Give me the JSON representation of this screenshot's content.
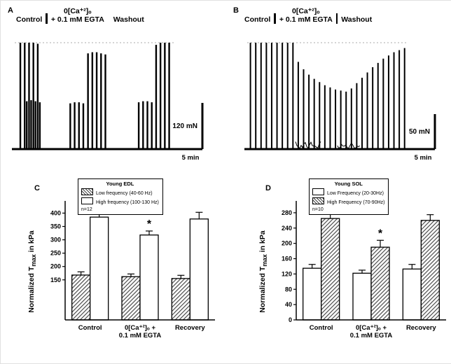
{
  "chart_data": [
    {
      "panel": "A",
      "type": "line",
      "subtype": "isometric-force-trace",
      "labels": {
        "control": "Control",
        "ca": "0[Ca⁺²]ₒ",
        "egta": "+ 0.1 mM EGTA",
        "washout": "Washout"
      },
      "scalebar": {
        "v": "120 mN",
        "h": "5 min"
      },
      "spikes": [
        [
          0.035,
          1.0
        ],
        [
          0.062,
          1.0
        ],
        [
          0.089,
          1.0
        ],
        [
          0.116,
          1.0
        ],
        [
          0.143,
          0.99
        ],
        [
          0.075,
          0.45
        ],
        [
          0.102,
          0.46
        ],
        [
          0.129,
          0.45
        ],
        [
          0.156,
          0.44
        ],
        [
          0.345,
          0.43
        ],
        [
          0.372,
          0.44
        ],
        [
          0.399,
          0.44
        ],
        [
          0.426,
          0.43
        ],
        [
          0.455,
          0.9
        ],
        [
          0.482,
          0.91
        ],
        [
          0.509,
          0.91
        ],
        [
          0.536,
          0.9
        ],
        [
          0.563,
          0.89
        ],
        [
          0.77,
          0.44
        ],
        [
          0.797,
          0.45
        ],
        [
          0.824,
          0.45
        ],
        [
          0.851,
          0.44
        ],
        [
          0.878,
          0.98
        ],
        [
          0.905,
          1.0
        ],
        [
          0.932,
          1.0
        ],
        [
          0.959,
          1.0
        ]
      ],
      "noise": []
    },
    {
      "panel": "B",
      "type": "line",
      "subtype": "isometric-force-trace",
      "labels": {
        "control": "Control",
        "ca": "0[Ca⁺²]ₒ",
        "egta": "+ 0.1 mM EGTA",
        "washout": "Washout"
      },
      "scalebar": {
        "v": "50 mN",
        "h": "5 min"
      },
      "spikes": [
        [
          0.02,
          1.0
        ],
        [
          0.053,
          1.0
        ],
        [
          0.086,
          1.0
        ],
        [
          0.119,
          1.0
        ],
        [
          0.152,
          1.0
        ],
        [
          0.185,
          1.0
        ],
        [
          0.218,
          1.0
        ],
        [
          0.251,
          1.0
        ],
        [
          0.284,
          1.0
        ],
        [
          0.317,
          0.82
        ],
        [
          0.35,
          0.75
        ],
        [
          0.383,
          0.7
        ],
        [
          0.416,
          0.66
        ],
        [
          0.449,
          0.63
        ],
        [
          0.482,
          0.6
        ],
        [
          0.515,
          0.58
        ],
        [
          0.548,
          0.56
        ],
        [
          0.581,
          0.55
        ],
        [
          0.614,
          0.54
        ],
        [
          0.647,
          0.57
        ],
        [
          0.68,
          0.62
        ],
        [
          0.713,
          0.67
        ],
        [
          0.746,
          0.72
        ],
        [
          0.779,
          0.77
        ],
        [
          0.812,
          0.81
        ],
        [
          0.845,
          0.85
        ],
        [
          0.878,
          0.88
        ],
        [
          0.911,
          0.91
        ],
        [
          0.944,
          0.93
        ],
        [
          0.977,
          0.95
        ]
      ],
      "noise": [
        {
          "x0": 0.3,
          "x1": 0.46,
          "amp": 10
        },
        {
          "x0": 0.56,
          "x1": 0.7,
          "amp": 8
        }
      ]
    },
    {
      "panel": "C",
      "type": "bar",
      "legend": {
        "title": "Young EDL",
        "items": [
          {
            "label": "Low frequency (40-60 Hz)",
            "fill": "hatch"
          },
          {
            "label": "High frequency (100-130 Hz)",
            "fill": "white"
          }
        ],
        "n": "n=12"
      },
      "ylabel": {
        "pre": "Normalized T",
        "sub": "max",
        "post": " in kPa"
      },
      "categories": [
        [
          "Control"
        ],
        [
          "0[Ca⁺²]ₒ +",
          "0.1 mM EGTA"
        ],
        [
          "Recovery"
        ]
      ],
      "series": [
        {
          "name": "Low frequency (40-60 Hz)",
          "fill": "hatch",
          "values": [
            168,
            162,
            155
          ],
          "errors": [
            12,
            10,
            12
          ]
        },
        {
          "name": "High frequency (100-130 Hz)",
          "fill": "white",
          "values": [
            385,
            318,
            378
          ],
          "errors": [
            22,
            15,
            25
          ]
        }
      ],
      "significance": [
        {
          "category": 1,
          "series": 1,
          "symbol": "*"
        }
      ],
      "ylim": [
        0,
        430
      ],
      "yticks": [
        150,
        200,
        250,
        300,
        350,
        400
      ]
    },
    {
      "panel": "D",
      "type": "bar",
      "legend": {
        "title": "Young SOL",
        "items": [
          {
            "label": "Low Frequency (20-30Hz)",
            "fill": "white"
          },
          {
            "label": "High Frequency (70-90Hz)",
            "fill": "hatch"
          }
        ],
        "n": "n=10"
      },
      "ylabel": {
        "pre": "Normalized T",
        "sub": "max",
        "post": " in kPa"
      },
      "categories": [
        [
          "Control"
        ],
        [
          "0[Ca⁺²]ₒ +",
          "0.1 mM EGTA"
        ],
        [
          "Recovery"
        ]
      ],
      "series": [
        {
          "name": "Low Frequency (20-30Hz)",
          "fill": "white",
          "values": [
            135,
            122,
            133
          ],
          "errors": [
            10,
            8,
            12
          ]
        },
        {
          "name": "High Frequency (70-90Hz)",
          "fill": "hatch",
          "values": [
            265,
            190,
            260
          ],
          "errors": [
            15,
            18,
            15
          ]
        }
      ],
      "significance": [
        {
          "category": 1,
          "series": 1,
          "symbol": "*"
        }
      ],
      "ylim": [
        0,
        300
      ],
      "yticks": [
        0,
        40,
        80,
        120,
        160,
        200,
        240,
        280
      ]
    }
  ]
}
